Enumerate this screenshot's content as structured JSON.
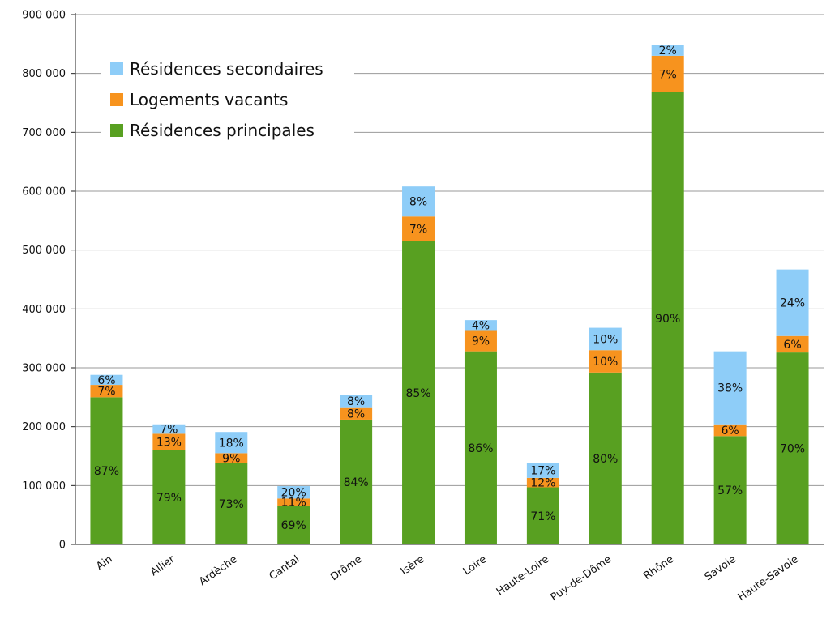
{
  "chart_data": {
    "type": "bar",
    "stacked": true,
    "categories": [
      "Ain",
      "Allier",
      "Ardèche",
      "Cantal",
      "Drôme",
      "Isère",
      "Loire",
      "Haute-Loire",
      "Puy-de-Dôme",
      "Rhône",
      "Savoie",
      "Haute-Savoie"
    ],
    "series": [
      {
        "name": "Résidences principales",
        "color": "#58a021",
        "values": [
          250000,
          160000,
          138000,
          66000,
          212000,
          515000,
          328000,
          97000,
          292000,
          768000,
          184000,
          326000
        ],
        "labels": [
          "87%",
          "79%",
          "73%",
          "69%",
          "84%",
          "85%",
          "86%",
          "71%",
          "80%",
          "90%",
          "57%",
          "70%"
        ]
      },
      {
        "name": "Logements vacants",
        "color": "#f7931e",
        "values": [
          21000,
          28000,
          17000,
          12000,
          21000,
          42000,
          36000,
          16000,
          38000,
          62000,
          20000,
          28000
        ],
        "labels": [
          "7%",
          "13%",
          "9%",
          "11%",
          "8%",
          "7%",
          "9%",
          "12%",
          "10%",
          "7%",
          "6%",
          "6%"
        ]
      },
      {
        "name": "Résidences secondaires",
        "color": "#8ecdf8",
        "values": [
          17000,
          16000,
          36000,
          21000,
          21000,
          51000,
          17000,
          26000,
          38000,
          19000,
          124000,
          113000
        ],
        "labels": [
          "6%",
          "7%",
          "18%",
          "20%",
          "8%",
          "8%",
          "4%",
          "17%",
          "10%",
          "2%",
          "38%",
          "24%"
        ]
      }
    ],
    "ylim": [
      0,
      900000
    ],
    "yticks": [
      {
        "value": 0,
        "label": "0"
      },
      {
        "value": 100000,
        "label": "100 000"
      },
      {
        "value": 200000,
        "label": "200 000"
      },
      {
        "value": 300000,
        "label": "300 000"
      },
      {
        "value": 400000,
        "label": "400 000"
      },
      {
        "value": 500000,
        "label": "500 000"
      },
      {
        "value": 600000,
        "label": "600 000"
      },
      {
        "value": 700000,
        "label": "700 000"
      },
      {
        "value": 800000,
        "label": "800 000"
      },
      {
        "value": 900000,
        "label": "900 000"
      }
    ],
    "grid": true,
    "legend_position": "top-left",
    "legend_order": [
      "Résidences secondaires",
      "Logements vacants",
      "Résidences principales"
    ]
  }
}
